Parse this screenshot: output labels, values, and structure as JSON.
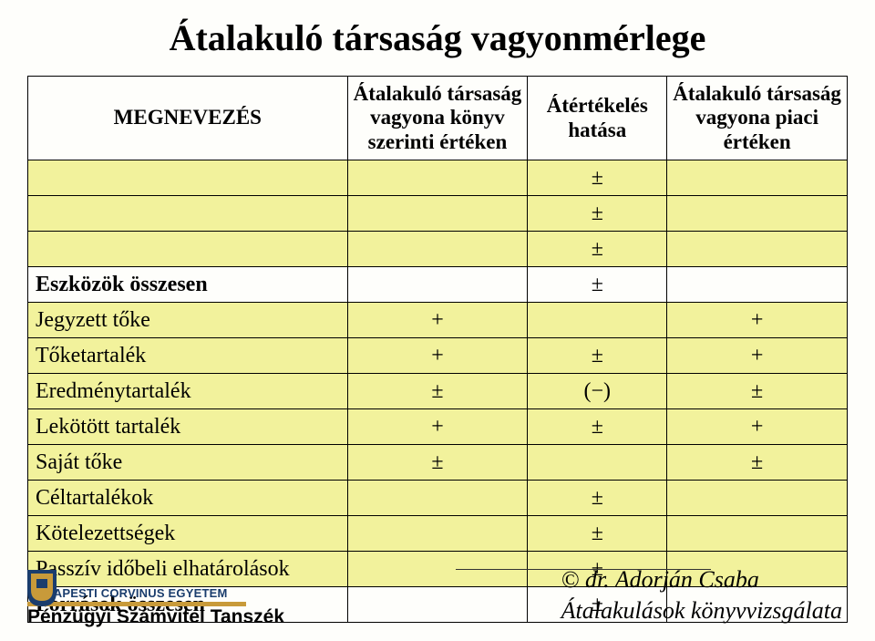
{
  "title": "Átalakuló társaság vagyonmérlege",
  "columns": {
    "c1": "MEGNEVEZÉS",
    "c2": "Átalakuló társaság vagyona könyv szerinti értéken",
    "c3": "Átértékelés hatása",
    "c4": "Átalakuló társaság vagyona piaci értéken"
  },
  "rows": [
    {
      "label": "",
      "c2": "",
      "c3": "±",
      "c4": "",
      "yellow": true,
      "bold": false,
      "shaded_c3": false
    },
    {
      "label": "",
      "c2": "",
      "c3": "±",
      "c4": "",
      "yellow": true,
      "bold": false,
      "shaded_c3": false
    },
    {
      "label": "",
      "c2": "",
      "c3": "±",
      "c4": "",
      "yellow": true,
      "bold": false,
      "shaded_c3": false
    },
    {
      "label": "Eszközök összesen",
      "c2": "",
      "c3": "±",
      "c4": "",
      "yellow": false,
      "bold": true,
      "shaded_c3": false
    },
    {
      "label": "Jegyzett tőke",
      "c2": "+",
      "c3": "",
      "c4": "+",
      "yellow": true,
      "bold": false,
      "shaded_c3": true
    },
    {
      "label": "Tőketartalék",
      "c2": "+",
      "c3": "±",
      "c4": "+",
      "yellow": true,
      "bold": false,
      "shaded_c3": false
    },
    {
      "label": "Eredménytartalék",
      "c2": "±",
      "c3": "(−)",
      "c4": "±",
      "yellow": true,
      "bold": false,
      "shaded_c3": false
    },
    {
      "label": "Lekötött tartalék",
      "c2": "+",
      "c3": "±",
      "c4": "+",
      "yellow": true,
      "bold": false,
      "shaded_c3": false
    },
    {
      "label": "Saját tőke",
      "c2": "±",
      "c3": "",
      "c4": "±",
      "yellow": true,
      "bold": false,
      "shaded_c3": false
    },
    {
      "label": "Céltartalékok",
      "c2": "",
      "c3": "±",
      "c4": "",
      "yellow": true,
      "bold": false,
      "shaded_c3": false
    },
    {
      "label": "Kötelezettségek",
      "c2": "",
      "c3": "±",
      "c4": "",
      "yellow": true,
      "bold": false,
      "shaded_c3": false
    },
    {
      "label": "Passzív időbeli elhatárolások",
      "c2": "",
      "c3": "±",
      "c4": "",
      "yellow": true,
      "bold": false,
      "shaded_c3": false
    },
    {
      "label": "Források összesen",
      "c2": "",
      "c3": "±",
      "c4": "",
      "yellow": false,
      "bold": true,
      "shaded_c3": false
    }
  ],
  "footer": {
    "university": "BUDAPESTI CORVINUS EGYETEM",
    "department": "Pénzügyi Számvitel Tanszék",
    "author_prefix": "©",
    "author_name": "dr. Adorján Csaba",
    "subtitle": "Átalakulások könyvvizsgálata"
  },
  "colors": {
    "yellow": "#f2f29c",
    "shaded": "#808080",
    "background": "#fefefb",
    "logo_blue": "#1a3d6d",
    "logo_gold": "#c89a3a"
  }
}
